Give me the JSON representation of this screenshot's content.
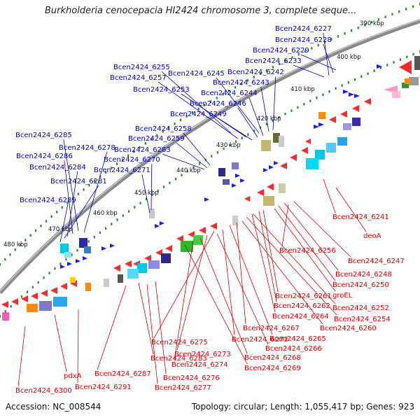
{
  "title": "Burkholderia cenocepacia HI2424 chromosome 3, complete seque...",
  "footer": {
    "accession": "Accession: NC_008544",
    "topology": "Topology: circular; Length: 1,055,417 bp; Genes: 923"
  },
  "colors": {
    "forward_label": "#0000cc",
    "reverse_label": "#dd0000",
    "backbone": "#8c8c8c",
    "tick_dot": "#2a8a2a"
  },
  "tick_labels": [
    "390 kbp",
    "400 kbp",
    "410 kbp",
    "420 kbp",
    "430 kbp",
    "440 kbp",
    "450 kbp",
    "460 kbp",
    "470 kbp",
    "480 kbp"
  ],
  "forward_labels": [
    "Bcen2424_6227",
    "Bcen2424_6228",
    "Bcen2424_6229",
    "Bcen2424_6233",
    "Bcen2424_6255",
    "Bcen2424_6257",
    "Bcen2424_6245",
    "Bcen2424_6242",
    "Bcen2424_6243",
    "Bcen2424_6253",
    "Bcen2424_6244",
    "Bcen2424_6246",
    "Bcen2424_6249",
    "Bcen2424_6258",
    "Bcen2424_6259",
    "Bcen2424_6263",
    "Bcen2424_6285",
    "Bcen2424_6278",
    "Bcen2424_6286",
    "Bcen2424_6270",
    "Bcen2424_6284",
    "Bcen2424_6271",
    "Bcen2424_6281",
    "Bcen2424_6289"
  ],
  "reverse_labels": [
    "Bcen2424_6241",
    "deoA",
    "Bcen2424_6256",
    "Bcen2424_6247",
    "Bcen2424_6248",
    "Bcen2424_6250",
    "groEL",
    "Bcen2424_6261",
    "Bcen2424_6262",
    "Bcen2424_6252",
    "Bcen2424_6264",
    "Bcen2424_6254",
    "Bcen2424_6267",
    "Bcen2424_6260",
    "Bcen2424_6265",
    "Bcen2424_6272",
    "Bcen2424_6275",
    "Bcen2424_6266",
    "Bcen2424_6273",
    "Bcen2424_6268",
    "Bcen2424_6274",
    "Bcen2424_6269",
    "Bcen2424_6283",
    "Bcen2424_6287",
    "pdxA",
    "Bcen2424_6276",
    "Bcen2424_6277",
    "Bcen2424_6291",
    "Bcen2424_6300"
  ]
}
